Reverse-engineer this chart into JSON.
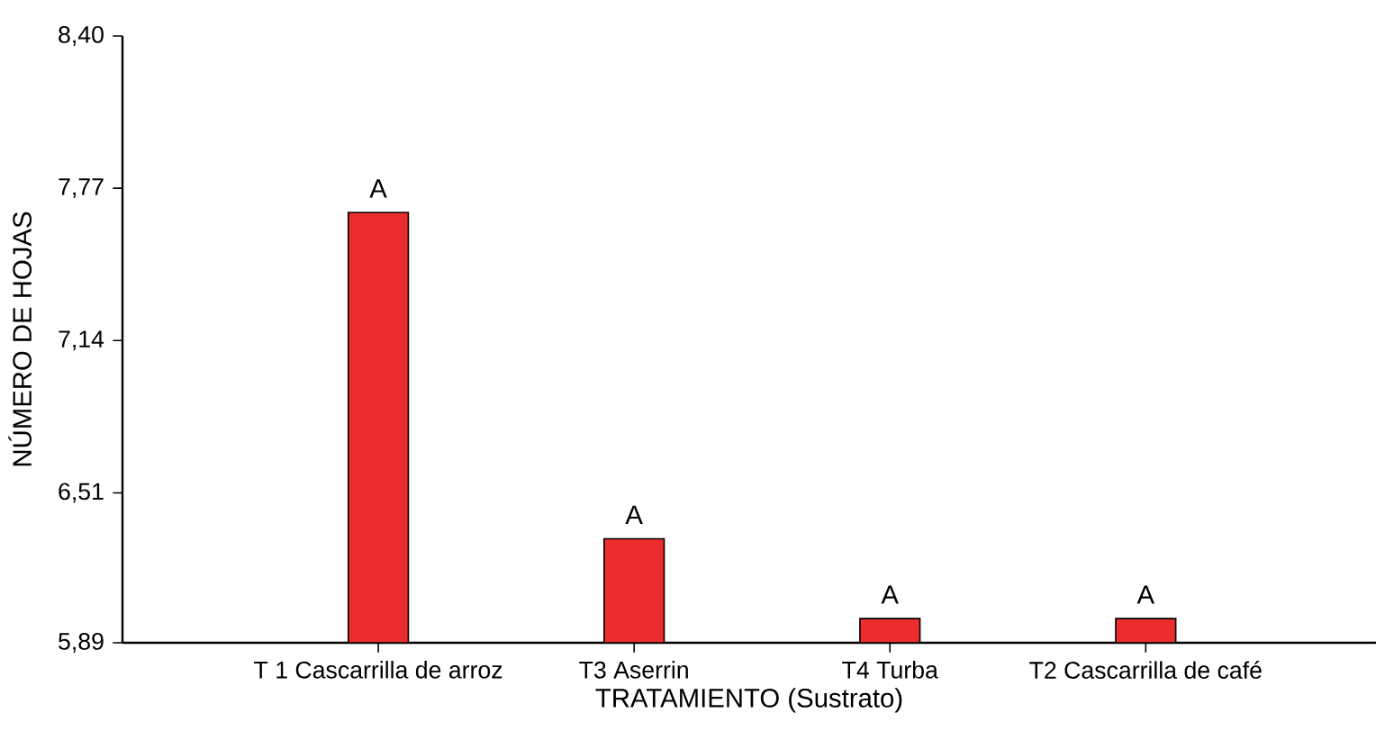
{
  "chart_data": {
    "type": "bar",
    "xlabel": "TRATAMIENTO (Sustrato)",
    "ylabel": "NÚMERO DE HOJAS",
    "categories": [
      "T 1 Cascarrilla de arroz",
      "T3 Aserrin",
      "T4 Turba",
      "T2 Cascarrilla de café"
    ],
    "values": [
      7.67,
      6.32,
      5.99,
      5.99
    ],
    "color": "#ec2d2d",
    "ylim": [
      5.89,
      8.4
    ],
    "yticks": [
      {
        "value": 5.89,
        "label": "5,89"
      },
      {
        "value": 6.51,
        "label": "6,51"
      },
      {
        "value": 7.14,
        "label": "7,14"
      },
      {
        "value": 7.77,
        "label": "7,77"
      },
      {
        "value": 8.4,
        "label": "8,40"
      }
    ],
    "annotations": [
      {
        "text": "A",
        "x": "T 1 Cascarrilla de arroz",
        "y": 7.67
      },
      {
        "text": "A",
        "x": "T3 Aserrin",
        "y": 6.32
      },
      {
        "text": "A",
        "x": "T4 Turba",
        "y": 5.99
      },
      {
        "text": "A",
        "x": "T2 Cascarrilla de café",
        "y": 5.99
      }
    ]
  }
}
